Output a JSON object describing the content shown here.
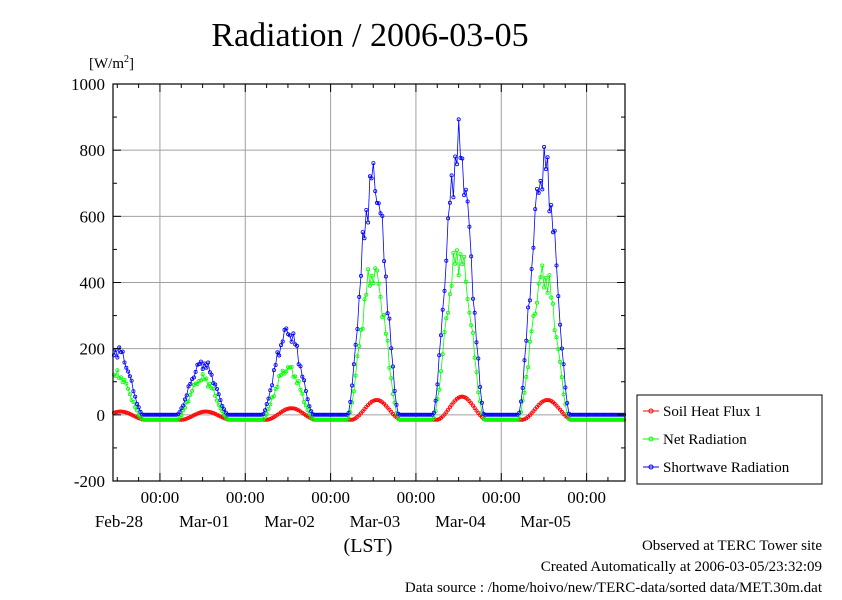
{
  "chart_data": {
    "type": "line",
    "title": "Radiation / 2006-03-05",
    "yunit": "[W/m",
    "yunit_sup": "2",
    "yunit_close": "]",
    "xlabel": "(LST)",
    "ylim": [
      -200,
      1000
    ],
    "yticks": [
      -200,
      0,
      200,
      400,
      600,
      800,
      1000
    ],
    "grid": true,
    "legend_position": "right",
    "x_range_days": [
      -0.55,
      5.45
    ],
    "day_labels": [
      {
        "time": "00:00",
        "date": "Feb-28",
        "day": 0
      },
      {
        "time": "00:00",
        "date": "Mar-01",
        "day": 1
      },
      {
        "time": "00:00",
        "date": "Mar-02",
        "day": 2
      },
      {
        "time": "00:00",
        "date": "Mar-03",
        "day": 3
      },
      {
        "time": "00:00",
        "date": "Mar-04",
        "day": 4
      },
      {
        "time": "00:00",
        "date": "Mar-05",
        "day": 5
      }
    ],
    "series": [
      {
        "name": "Soil Heat Flux 1",
        "color": "#ff0000",
        "daily_peaks": [
          10,
          10,
          20,
          45,
          55,
          45
        ],
        "night_value": -15
      },
      {
        "name": "Net Radiation",
        "color": "#00ff00",
        "daily_peaks": [
          120,
          110,
          140,
          430,
          480,
          420
        ],
        "night_value": -15
      },
      {
        "name": "Shortwave Radiation",
        "color": "#0000ff",
        "daily_peaks": [
          195,
          155,
          250,
          710,
          800,
          750
        ],
        "night_value": 0
      }
    ]
  },
  "footer": {
    "observed": "Observed at TERC Tower site",
    "created": "Created Automatically at 2006-03-05/23:32:09",
    "source": "Data source : /home/hoivo/new/TERC-data/sorted  data/MET.30m.dat"
  }
}
